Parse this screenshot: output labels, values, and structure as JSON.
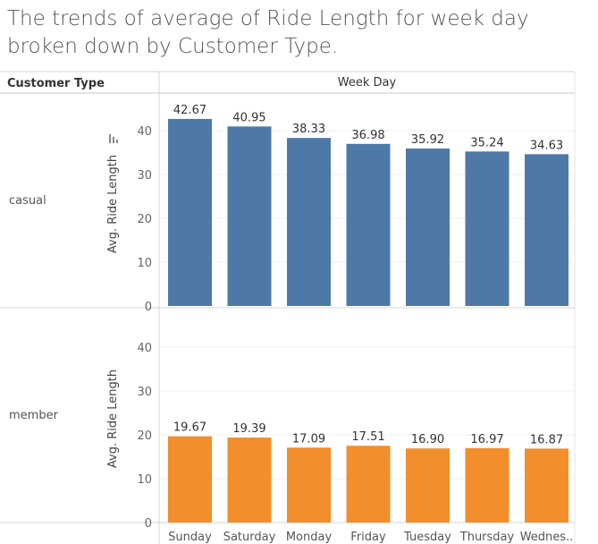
{
  "title": "The trends of average of Ride Length for week day broken down by Customer Type.",
  "header": {
    "row_dimension": "Customer Type",
    "column_dimension": "Week Day"
  },
  "colors": {
    "casual": "#4e79a7",
    "member": "#f28e2b"
  },
  "chart_data": {
    "type": "bar",
    "title": "The trends of average of Ride Length for week day broken down by Customer Type.",
    "categories": [
      "Sunday",
      "Saturday",
      "Monday",
      "Friday",
      "Tuesday",
      "Thursday",
      "Wednes.."
    ],
    "ylabel": "Avg. Ride Length",
    "panels": [
      {
        "name": "casual",
        "values": [
          42.67,
          40.95,
          38.33,
          36.98,
          35.92,
          35.24,
          34.63
        ],
        "labels": [
          "42.67",
          "40.95",
          "38.33",
          "36.98",
          "35.92",
          "35.24",
          "34.63"
        ],
        "yticks": [
          0,
          10,
          20,
          30,
          40
        ],
        "ylim": [
          0,
          45
        ],
        "color": "#4e79a7"
      },
      {
        "name": "member",
        "values": [
          19.67,
          19.39,
          17.09,
          17.51,
          16.9,
          16.97,
          16.87
        ],
        "labels": [
          "19.67",
          "19.39",
          "17.09",
          "17.51",
          "16.90",
          "16.97",
          "16.87"
        ],
        "yticks": [
          0,
          10,
          20,
          30,
          40
        ],
        "ylim": [
          0,
          45
        ],
        "color": "#f28e2b"
      }
    ],
    "grid": true,
    "legend": "none"
  }
}
